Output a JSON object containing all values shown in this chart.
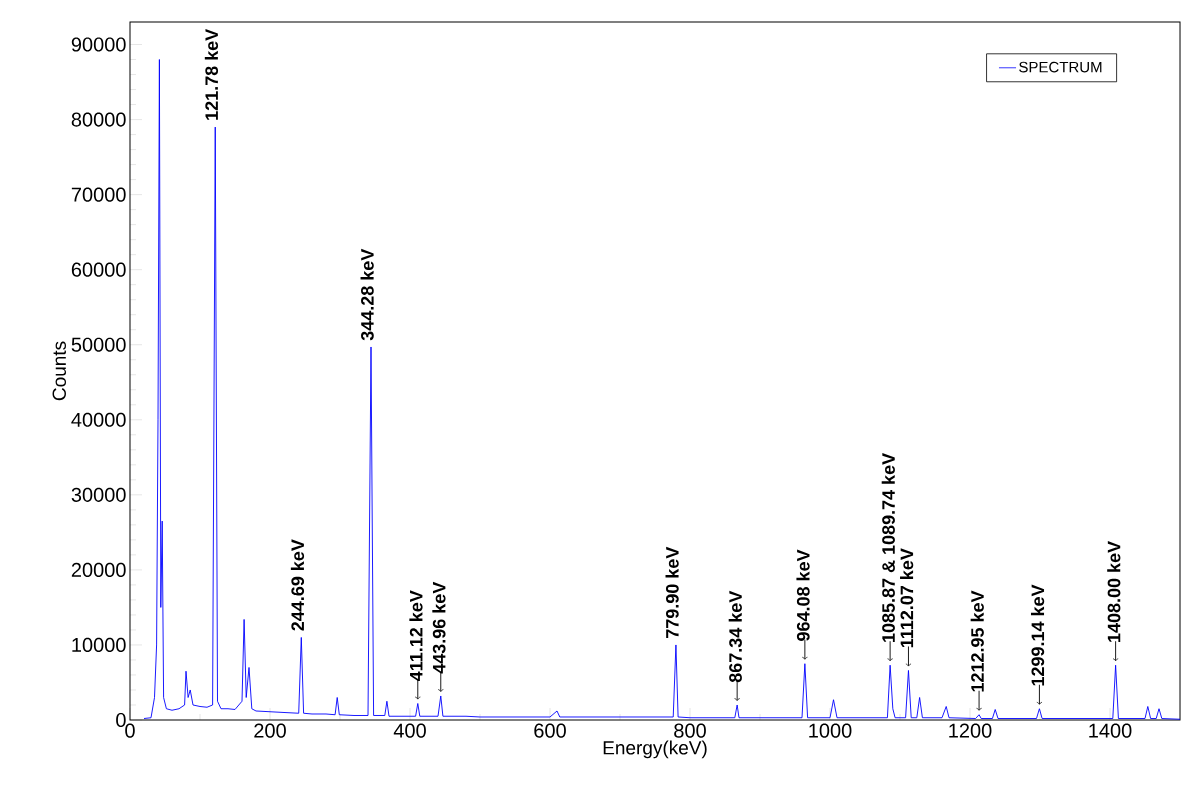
{
  "chart_data": {
    "type": "line",
    "xlabel": "Energy(keV)",
    "ylabel": "Counts",
    "xlim": [
      0,
      1500
    ],
    "ylim": [
      0,
      93000
    ],
    "xticks": [
      0,
      200,
      400,
      600,
      800,
      1000,
      1200,
      1400
    ],
    "yticks": [
      0,
      10000,
      20000,
      30000,
      40000,
      50000,
      60000,
      70000,
      80000,
      90000
    ],
    "grid": false,
    "legend": "top right",
    "marker": "none",
    "line_style": "solid",
    "x": [
      20,
      30,
      35,
      38,
      40,
      42,
      44,
      46,
      48,
      52,
      60,
      70,
      78,
      80,
      83,
      86,
      90,
      100,
      110,
      118,
      121.78,
      125,
      130,
      140,
      150,
      160,
      163,
      166,
      170,
      174,
      180,
      200,
      220,
      241,
      244.69,
      248,
      260,
      280,
      293,
      296,
      299,
      320,
      340,
      344.28,
      348,
      360,
      364,
      367,
      370,
      390,
      408,
      411.12,
      414,
      440,
      443.96,
      447,
      480,
      500,
      600,
      610,
      614,
      776,
      779.9,
      783,
      800,
      864,
      867.34,
      870,
      900,
      960,
      964.08,
      968,
      1000,
      1005,
      1010,
      1050,
      1082,
      1085.87,
      1089.74,
      1093,
      1108,
      1112.07,
      1116,
      1124,
      1128,
      1132,
      1160,
      1166,
      1170,
      1208,
      1212.95,
      1216,
      1232,
      1236,
      1240,
      1295,
      1299.14,
      1303,
      1360,
      1404,
      1408,
      1412,
      1450,
      1454,
      1458,
      1466,
      1470,
      1474,
      1500
    ],
    "series": [
      {
        "name": "SPECTRUM",
        "color": "#0000ff",
        "values": [
          200,
          300,
          3000,
          10000,
          40000,
          88000,
          15000,
          26500,
          3000,
          1500,
          1300,
          1500,
          2000,
          6500,
          3000,
          4000,
          2000,
          1800,
          1700,
          2000,
          79000,
          2500,
          1500,
          1500,
          1400,
          2500,
          13400,
          3000,
          7000,
          1500,
          1200,
          1100,
          1000,
          900,
          11000,
          900,
          800,
          800,
          700,
          3000,
          700,
          600,
          600,
          49700,
          600,
          600,
          600,
          2500,
          500,
          500,
          500,
          2200,
          500,
          500,
          3200,
          500,
          500,
          400,
          400,
          1200,
          400,
          400,
          10000,
          400,
          300,
          300,
          2000,
          300,
          300,
          300,
          7500,
          300,
          300,
          2700,
          300,
          300,
          300,
          7300,
          1500,
          300,
          300,
          6600,
          300,
          300,
          3000,
          300,
          300,
          1800,
          300,
          200,
          700,
          200,
          200,
          1400,
          200,
          200,
          1500,
          200,
          200,
          200,
          7300,
          200,
          200,
          1800,
          200,
          200,
          1500,
          200,
          100
        ]
      }
    ],
    "annotations": [
      {
        "text": "121.78 keV",
        "x": 121.78,
        "y": 79000
      },
      {
        "text": "244.69 keV",
        "x": 244.69,
        "y": 11000
      },
      {
        "text": "344.28 keV",
        "x": 344.28,
        "y": 49700
      },
      {
        "text": "411.12 keV",
        "x": 411.12,
        "y": 2200
      },
      {
        "text": "443.96 keV",
        "x": 443.96,
        "y": 3200
      },
      {
        "text": "779.90 keV",
        "x": 779.9,
        "y": 10000
      },
      {
        "text": "867.34 keV",
        "x": 867.34,
        "y": 2000
      },
      {
        "text": "964.08 keV",
        "x": 964.08,
        "y": 7500
      },
      {
        "text": "1085.87 & 1089.74 keV",
        "x": 1085.87,
        "y": 7300
      },
      {
        "text": "1112.07 keV",
        "x": 1112.07,
        "y": 6600
      },
      {
        "text": "1212.95 keV",
        "x": 1212.95,
        "y": 700
      },
      {
        "text": "1299.14 keV",
        "x": 1299.14,
        "y": 1500
      },
      {
        "text": "1408.00 keV",
        "x": 1408.0,
        "y": 7300
      }
    ]
  }
}
